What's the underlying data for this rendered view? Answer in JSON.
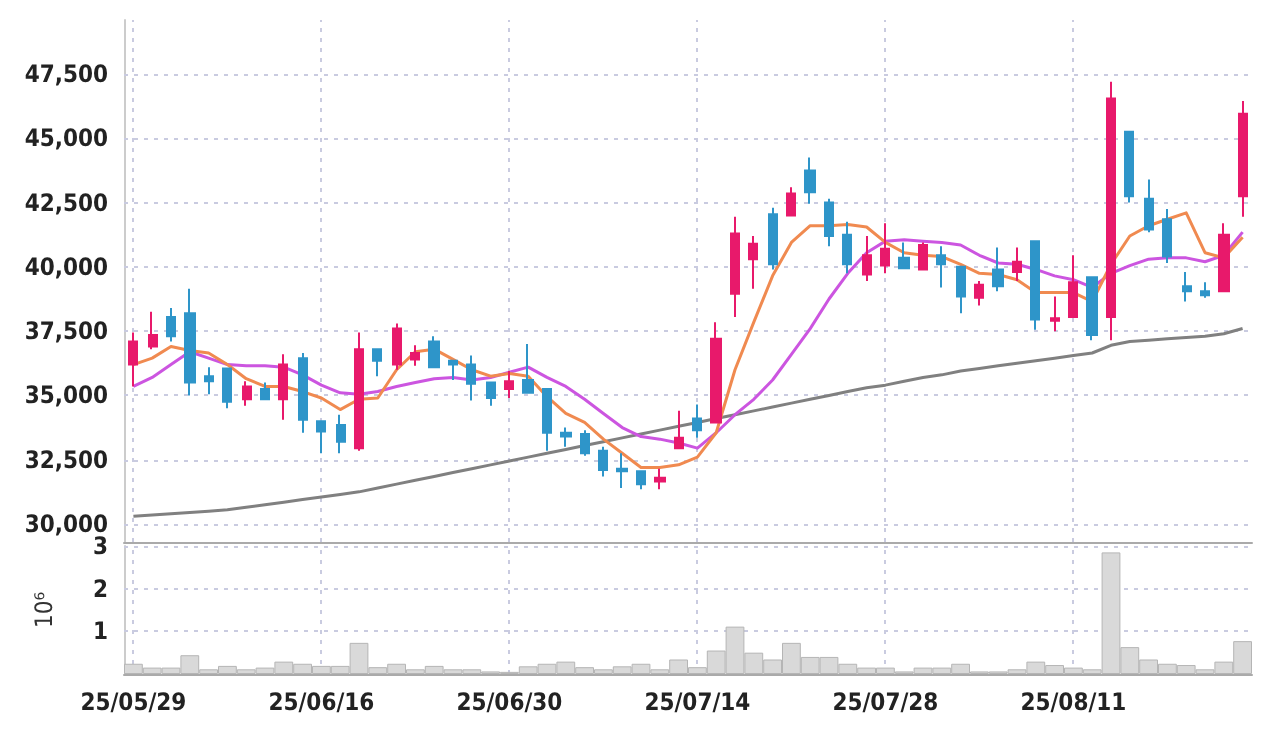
{
  "chart_data": [
    {
      "type": "candlestick",
      "tick_labels": "y",
      "grid": true,
      "marker": "none",
      "categories": [
        null,
        null,
        null,
        null,
        null,
        null,
        null,
        null,
        null,
        null,
        null,
        null,
        null,
        null,
        null,
        null,
        null,
        null,
        null,
        null,
        null,
        null,
        null,
        null,
        null,
        null,
        null,
        null,
        null,
        null,
        null,
        null,
        null,
        null,
        null,
        null,
        null,
        null,
        null,
        null,
        null,
        null,
        null,
        null,
        null,
        null,
        null,
        null,
        null,
        null,
        null,
        null,
        null,
        null,
        null,
        null,
        null,
        null,
        null,
        null
      ],
      "ylim": [
        29300,
        49600
      ],
      "yticks": [
        {
          "value": 30000,
          "label": "30,000"
        },
        {
          "value": 32500,
          "label": "32,500"
        },
        {
          "value": 35000,
          "label": "35,000"
        },
        {
          "value": 37500,
          "label": "37,500"
        },
        {
          "value": 40000,
          "label": "40,000"
        },
        {
          "value": 42500,
          "label": "42,500"
        },
        {
          "value": 45000,
          "label": "45,000"
        },
        {
          "value": 47500,
          "label": "47,500"
        }
      ],
      "ohlc": [
        [
          36200,
          37450,
          35350,
          37100
        ],
        [
          36900,
          38250,
          36800,
          37350
        ],
        [
          38050,
          38400,
          37100,
          37300
        ],
        [
          38200,
          39150,
          35000,
          35500
        ],
        [
          35750,
          36100,
          35050,
          35550
        ],
        [
          36050,
          36050,
          34500,
          34750
        ],
        [
          34850,
          35550,
          34600,
          35350
        ],
        [
          35250,
          35500,
          34850,
          34850
        ],
        [
          34850,
          36600,
          34050,
          36200
        ],
        [
          36450,
          36650,
          33550,
          34050
        ],
        [
          34000,
          34000,
          32750,
          33600
        ],
        [
          33850,
          34250,
          32750,
          33200
        ],
        [
          32950,
          37450,
          32850,
          36800
        ],
        [
          36800,
          36800,
          35750,
          36350
        ],
        [
          36200,
          37800,
          36000,
          37600
        ],
        [
          36400,
          36950,
          36150,
          36650
        ],
        [
          37100,
          37300,
          36100,
          36100
        ],
        [
          36350,
          36350,
          35600,
          36200
        ],
        [
          36200,
          36550,
          34800,
          35450
        ],
        [
          35500,
          35500,
          34600,
          34900
        ],
        [
          35250,
          35950,
          34900,
          35550
        ],
        [
          35600,
          37000,
          35100,
          35100
        ],
        [
          35250,
          35250,
          32850,
          33550
        ],
        [
          33550,
          33750,
          33000,
          33400
        ],
        [
          33500,
          33650,
          32650,
          32750
        ],
        [
          32850,
          33000,
          31850,
          32100
        ],
        [
          32150,
          32750,
          31400,
          32050
        ],
        [
          32050,
          32050,
          31350,
          31550
        ],
        [
          31650,
          32150,
          31350,
          31800
        ],
        [
          32950,
          34400,
          32950,
          33350
        ],
        [
          34100,
          34650,
          33350,
          33650
        ],
        [
          33950,
          37850,
          33950,
          37200
        ],
        [
          38950,
          41950,
          38050,
          41300
        ],
        [
          40300,
          41200,
          39150,
          40900
        ],
        [
          42050,
          42300,
          39900,
          40100
        ],
        [
          42000,
          43100,
          42000,
          42850
        ],
        [
          43750,
          44250,
          42450,
          42900
        ],
        [
          42500,
          42650,
          40800,
          41200
        ],
        [
          41250,
          41750,
          39750,
          40100
        ],
        [
          39700,
          41200,
          39450,
          40450
        ],
        [
          40050,
          41700,
          39750,
          40700
        ],
        [
          40350,
          40950,
          39950,
          39950
        ],
        [
          39900,
          40950,
          39900,
          40850
        ],
        [
          40450,
          40800,
          39200,
          40100
        ],
        [
          40000,
          40000,
          38200,
          38850
        ],
        [
          38800,
          39450,
          38500,
          39300
        ],
        [
          39900,
          40750,
          39050,
          39250
        ],
        [
          39800,
          40750,
          39450,
          40200
        ],
        [
          41000,
          41000,
          37550,
          37950
        ],
        [
          37900,
          38850,
          37500,
          38000
        ],
        [
          38050,
          40450,
          38050,
          39400
        ],
        [
          39600,
          39600,
          37150,
          37350
        ],
        [
          38050,
          47200,
          37150,
          46550
        ],
        [
          45250,
          45250,
          42500,
          42750
        ],
        [
          42650,
          43400,
          41350,
          41450
        ],
        [
          41850,
          42250,
          40150,
          40400
        ],
        [
          39250,
          39800,
          38650,
          39050
        ],
        [
          39050,
          39400,
          38800,
          38900
        ],
        [
          39050,
          41700,
          39050,
          41250
        ],
        [
          42750,
          46450,
          41950,
          45950
        ]
      ],
      "colors": [
        "#e8196b",
        "#e8196b",
        "#2e95c9",
        "#2e95c9",
        "#2e95c9",
        "#2e95c9",
        "#e8196b",
        "#2e95c9",
        "#e8196b",
        "#2e95c9",
        "#2e95c9",
        "#2e95c9",
        "#e8196b",
        "#2e95c9",
        "#e8196b",
        "#e8196b",
        "#2e95c9",
        "#2e95c9",
        "#2e95c9",
        "#2e95c9",
        "#e8196b",
        "#2e95c9",
        "#2e95c9",
        "#2e95c9",
        "#2e95c9",
        "#2e95c9",
        "#2e95c9",
        "#2e95c9",
        "#e8196b",
        "#e8196b",
        "#2e95c9",
        "#e8196b",
        "#e8196b",
        "#e8196b",
        "#2e95c9",
        "#e8196b",
        "#2e95c9",
        "#2e95c9",
        "#2e95c9",
        "#e8196b",
        "#e8196b",
        "#2e95c9",
        "#e8196b",
        "#2e95c9",
        "#2e95c9",
        "#e8196b",
        "#2e95c9",
        "#e8196b",
        "#2e95c9",
        "#e8196b",
        "#e8196b",
        "#2e95c9",
        "#e8196b",
        "#2e95c9",
        "#2e95c9",
        "#2e95c9",
        "#2e95c9",
        "#2e95c9",
        "#e8196b",
        "#e8196b"
      ],
      "series": [
        {
          "type": "line",
          "color": "#808080",
          "values": [
            30300,
            30350,
            30400,
            30450,
            30500,
            30550,
            30650,
            30750,
            30850,
            30950,
            31050,
            31150,
            31250,
            31400,
            31550,
            31700,
            31850,
            32000,
            32150,
            32300,
            32450,
            32600,
            32750,
            32900,
            33050,
            33200,
            33350,
            33500,
            33650,
            33800,
            33950,
            34100,
            34250,
            34400,
            34550,
            34700,
            34850,
            35000,
            35150,
            35300,
            35400,
            35550,
            35700,
            35800,
            35950,
            36050,
            36150,
            36250,
            36350,
            36450,
            36550,
            36650,
            36950,
            37100,
            37150,
            37200,
            37250,
            37300,
            37400,
            37600
          ]
        },
        {
          "type": "line",
          "color": "#cc55e0",
          "values": [
            35350,
            35700,
            36200,
            36700,
            36450,
            36200,
            36150,
            36150,
            36100,
            35800,
            35400,
            35100,
            35050,
            35150,
            35350,
            35500,
            35650,
            35700,
            35600,
            35700,
            35900,
            36100,
            35700,
            35350,
            34850,
            34300,
            33750,
            33400,
            33300,
            33150,
            32950,
            33550,
            34250,
            34850,
            35600,
            36600,
            37600,
            38750,
            39750,
            40550,
            41000,
            41050,
            41000,
            40950,
            40850,
            40450,
            40150,
            40100,
            39900,
            39650,
            39500,
            39200,
            39750,
            40050,
            40300,
            40350,
            40350,
            40200,
            40450,
            41350
          ]
        },
        {
          "type": "line",
          "color": "#f08a50",
          "values": [
            36200,
            36450,
            36900,
            36750,
            36650,
            36200,
            35650,
            35350,
            35350,
            35150,
            34900,
            34450,
            34850,
            34900,
            36000,
            36700,
            36800,
            36400,
            36000,
            35750,
            35850,
            35750,
            34950,
            34300,
            33950,
            33300,
            32750,
            32200,
            32200,
            32300,
            32600,
            33550,
            36000,
            37850,
            39650,
            40950,
            41600,
            41600,
            41650,
            41550,
            40950,
            40550,
            40450,
            40400,
            40100,
            39750,
            39700,
            39500,
            39000,
            39000,
            39000,
            38650,
            40100,
            41200,
            41600,
            41850,
            42100,
            40550,
            40350,
            41150
          ]
        }
      ]
    },
    {
      "type": "bar",
      "grid": true,
      "ylabel": "10⁶",
      "color": "#d9d9d9",
      "categories": [
        "25/05/29",
        null,
        null,
        null,
        null,
        null,
        null,
        null,
        null,
        null,
        "25/06/16",
        null,
        null,
        null,
        null,
        null,
        null,
        null,
        null,
        null,
        "25/06/30",
        null,
        null,
        null,
        null,
        null,
        null,
        null,
        null,
        null,
        "25/07/14",
        null,
        null,
        null,
        null,
        null,
        null,
        null,
        null,
        null,
        "25/07/28",
        null,
        null,
        null,
        null,
        null,
        null,
        null,
        null,
        null,
        "25/08/11",
        null,
        null,
        null,
        null,
        null,
        null,
        null,
        null,
        null
      ],
      "ylim": [
        0,
        3
      ],
      "yticks": [
        1,
        2,
        3
      ],
      "values": [
        0.24,
        0.15,
        0.15,
        0.44,
        0.11,
        0.19,
        0.11,
        0.15,
        0.29,
        0.24,
        0.19,
        0.19,
        0.73,
        0.16,
        0.24,
        0.11,
        0.19,
        0.11,
        0.11,
        0.06,
        0.05,
        0.18,
        0.24,
        0.29,
        0.16,
        0.11,
        0.18,
        0.24,
        0.11,
        0.34,
        0.16,
        0.55,
        1.11,
        0.5,
        0.34,
        0.73,
        0.4,
        0.4,
        0.24,
        0.15,
        0.15,
        0.06,
        0.15,
        0.15,
        0.24,
        0.06,
        0.06,
        0.11,
        0.29,
        0.21,
        0.15,
        0.11,
        2.85,
        0.63,
        0.34,
        0.24,
        0.21,
        0.11,
        0.29,
        0.77
      ]
    }
  ]
}
